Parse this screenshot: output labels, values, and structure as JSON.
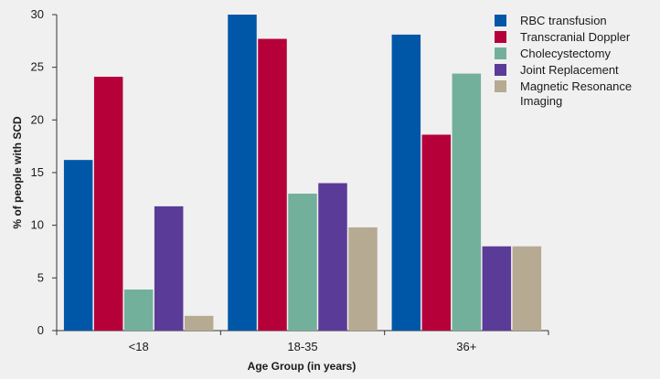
{
  "chart_data": {
    "type": "bar",
    "categories": [
      "<18",
      "18-35",
      "36+"
    ],
    "series": [
      {
        "name": "RBC transfusion",
        "color": "#0057a8",
        "values": [
          16.2,
          30.0,
          28.1
        ]
      },
      {
        "name": "Transcranial Doppler",
        "color": "#b5003a",
        "values": [
          24.1,
          27.7,
          18.6
        ]
      },
      {
        "name": "Cholecystectomy",
        "color": "#72b09c",
        "values": [
          3.9,
          13.0,
          24.4
        ]
      },
      {
        "name": "Joint Replacement",
        "color": "#5b3b98",
        "values": [
          11.8,
          14.0,
          8.0
        ]
      },
      {
        "name": "Magnetic Resonance Imaging",
        "color": "#b7aa92",
        "values": [
          1.4,
          9.8,
          8.0
        ]
      }
    ],
    "legend_labels": [
      [
        "RBC transfusion"
      ],
      [
        "Transcranial Doppler"
      ],
      [
        "Cholecystectomy"
      ],
      [
        "Joint Replacement"
      ],
      [
        "Magnetic Resonance",
        "Imaging"
      ]
    ],
    "legend_position": "top-right",
    "xlabel": "Age Group (in years)",
    "ylabel": "% of people with SCD",
    "ylim": [
      0,
      30
    ],
    "yticks": [
      "0",
      "5",
      "10",
      "15",
      "20",
      "25",
      "30"
    ],
    "grid": false,
    "background": "#f0f0f0"
  }
}
